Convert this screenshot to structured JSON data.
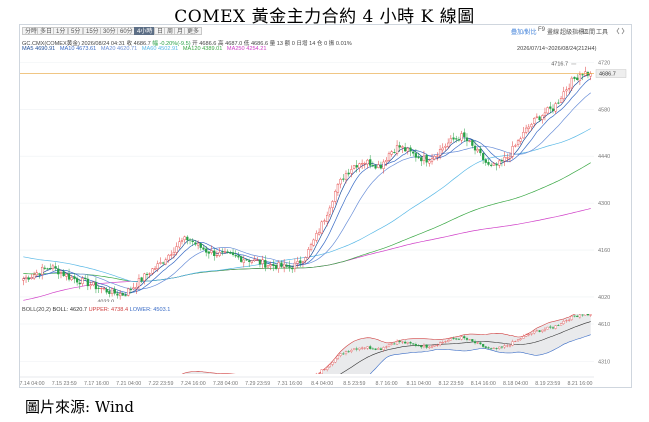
{
  "title": "COMEX 黃金主力合約 4 小時 K 線圖",
  "footer": "圖片來源: Wind",
  "toolbar": {
    "periods": [
      "分時",
      "多日",
      "1分",
      "5分",
      "15分",
      "30分",
      "60分",
      "4小時",
      "日",
      "周",
      "月",
      "更多"
    ],
    "active_period": "4小時",
    "right_tools": [
      "疊加/對比",
      "F9",
      "畫線",
      "超級指標",
      "區間",
      "工具"
    ],
    "nav_icons": [
      "chevron-left-icon",
      "chevron-right-icon",
      "plus-icon",
      "minus-icon"
    ]
  },
  "info": {
    "symbol": "GC.CMX(COMEX黄金)",
    "datetime": "2026/08/24 04:31",
    "close": "收 4686.7",
    "change": "幅 -0.20%(-9.5)",
    "open": "开 4686.6",
    "high": "高 4687.0",
    "low": "低 4686.6",
    "volume": "量 13",
    "amount": "额 0",
    "oi": "仓 0",
    "oi_change": "日增 14",
    "rise": "增 0",
    "amplitude": "振 0.01%",
    "range": "2026/07/14~2026/08/24(212H4)"
  },
  "ma_labels": [
    {
      "name": "MA5",
      "value": "4690.91",
      "color": "#1f4e99"
    },
    {
      "name": "MA10",
      "value": "4673.61",
      "color": "#3a6cc6"
    },
    {
      "name": "MA20",
      "value": "4620.71",
      "color": "#6a8fd8"
    },
    {
      "name": "MA60",
      "value": "4502.91",
      "color": "#58b8e6"
    },
    {
      "name": "MA120",
      "value": "4389.01",
      "color": "#3aa845"
    },
    {
      "name": "MA250",
      "value": "4254.21",
      "color": "#d040c8"
    }
  ],
  "boll_label": {
    "name": "BOLL(20,2)",
    "boll": "BOLL: 4620.7",
    "upper": "UPPER: 4738.4",
    "lower": "LOWER: 4503.1"
  },
  "colors": {
    "up": "#e23b3b",
    "down": "#27a046",
    "price_line": "#e8a53a",
    "price_tag_bg": "#eeeeee"
  },
  "chart_data": {
    "type": "candlestick",
    "x_ticks": [
      "7.14 04:00",
      "7.15 23:59",
      "7.17 16:00",
      "7.21 04:00",
      "7.22 23:59",
      "7.24 16:00",
      "7.28 04:00",
      "7.29 23:59",
      "7.31 16:00",
      "8.4 04:00",
      "8.5 23:59",
      "8.7 16:00",
      "8.11 04:00",
      "8.12 23:59",
      "8.14 16:00",
      "8.18 04:00",
      "8.19 23:59",
      "8.21 16:00"
    ],
    "y_ticks": [
      4020,
      4160,
      4300,
      4440,
      4580,
      4720
    ],
    "ylim": [
      4005,
      4745
    ],
    "annotations": {
      "high_label": "4716.7",
      "low_label": "4022.0",
      "last_price": "4686.7"
    },
    "anchor_closes": [
      4075,
      4085,
      4100,
      4110,
      4095,
      4080,
      4070,
      4062,
      4050,
      4040,
      4032,
      4028,
      4050,
      4075,
      4100,
      4120,
      4150,
      4180,
      4195,
      4175,
      4158,
      4150,
      4145,
      4140,
      4135,
      4130,
      4122,
      4115,
      4112,
      4108,
      4118,
      4150,
      4200,
      4260,
      4330,
      4380,
      4410,
      4425,
      4420,
      4410,
      4450,
      4470,
      4455,
      4440,
      4430,
      4445,
      4470,
      4490,
      4500,
      4470,
      4440,
      4405,
      4415,
      4440,
      4480,
      4520,
      4550,
      4570,
      4585,
      4630,
      4665,
      4690,
      4686.7
    ],
    "boll": {
      "y_ticks": [
        4310,
        4610
      ],
      "ylim": [
        4210,
        4690
      ]
    }
  }
}
